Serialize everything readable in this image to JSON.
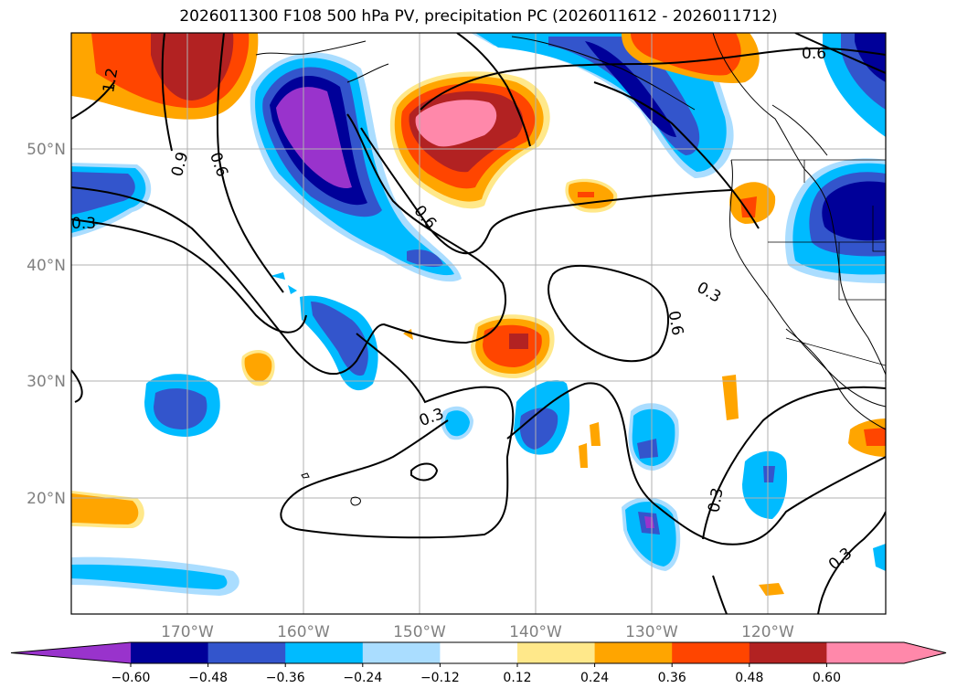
{
  "title": "2026011300 F108 500 hPa PV, precipitation PC (2026011612 - 2026011712)",
  "map": {
    "lat_labels": [
      "50°N",
      "40°N",
      "30°N",
      "20°N"
    ],
    "lon_labels": [
      "170°W",
      "160°W",
      "150°W",
      "140°W",
      "130°W",
      "120°W"
    ],
    "contour_labels": [
      "1.2",
      "0.9",
      "0.6",
      "0.3",
      "0.6",
      "0.3",
      "0.6",
      "0.3",
      "0.6",
      "0.3",
      "0.3"
    ]
  },
  "colorbar": {
    "ticks": [
      "−0.60",
      "−0.48",
      "−0.36",
      "−0.24",
      "−0.12",
      "0.12",
      "0.24",
      "0.36",
      "0.48",
      "0.60"
    ],
    "colors": [
      "#9933cc",
      "#000099",
      "#3355cc",
      "#00bbff",
      "#aaddff",
      "#ffffff",
      "#ffe88a",
      "#ffa500",
      "#ff4500",
      "#b22222",
      "#ff88aa",
      "#ff88aa"
    ]
  }
}
